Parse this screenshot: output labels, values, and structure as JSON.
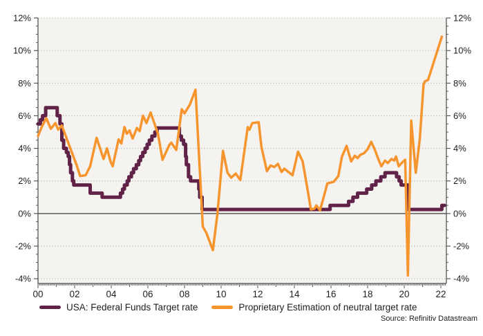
{
  "source": "Source: Refinitiv Datastream",
  "chart_data": {
    "type": "line",
    "title": "",
    "xlabel": "",
    "ylabel": "",
    "x_axis": {
      "min": 2000,
      "max": 2022.3,
      "tick_years": [
        2000,
        2002,
        2004,
        2006,
        2008,
        2010,
        2012,
        2014,
        2016,
        2018,
        2020,
        2022
      ],
      "tick_labels": [
        "00",
        "02",
        "04",
        "06",
        "08",
        "10",
        "12",
        "14",
        "16",
        "18",
        "20",
        "22"
      ],
      "minor_tick_years": 0.08333
    },
    "y_axis": {
      "min": -4.29,
      "max": 12,
      "ticks": [
        -4,
        -2,
        0,
        2,
        4,
        6,
        8,
        10,
        12
      ],
      "tick_labels": [
        "-4%",
        "-2%",
        "0%",
        "2%",
        "4%",
        "6%",
        "8%",
        "10%",
        "12%"
      ],
      "minor_step": 0.5,
      "unit": "%",
      "grid": "dotted",
      "labels_both_sides": true
    },
    "legend_position": "bottom",
    "series": [
      {
        "name": "USA: Federal Funds Target rate",
        "color": "#602347",
        "style": "step",
        "stroke_width": 5,
        "points": [
          [
            2000.0,
            5.5
          ],
          [
            2000.13,
            5.75
          ],
          [
            2000.25,
            6.0
          ],
          [
            2000.42,
            6.5
          ],
          [
            2001.05,
            6.0
          ],
          [
            2001.2,
            5.5
          ],
          [
            2001.3,
            4.5
          ],
          [
            2001.4,
            4.0
          ],
          [
            2001.55,
            3.75
          ],
          [
            2001.65,
            3.5
          ],
          [
            2001.72,
            3.0
          ],
          [
            2001.78,
            2.5
          ],
          [
            2001.88,
            2.0
          ],
          [
            2001.95,
            1.75
          ],
          [
            2002.85,
            1.25
          ],
          [
            2003.5,
            1.0
          ],
          [
            2004.5,
            1.25
          ],
          [
            2004.62,
            1.5
          ],
          [
            2004.72,
            1.75
          ],
          [
            2004.87,
            2.0
          ],
          [
            2004.96,
            2.25
          ],
          [
            2005.1,
            2.5
          ],
          [
            2005.22,
            2.75
          ],
          [
            2005.37,
            3.0
          ],
          [
            2005.5,
            3.25
          ],
          [
            2005.6,
            3.5
          ],
          [
            2005.72,
            3.75
          ],
          [
            2005.85,
            4.0
          ],
          [
            2005.96,
            4.25
          ],
          [
            2006.08,
            4.5
          ],
          [
            2006.22,
            4.75
          ],
          [
            2006.38,
            5.0
          ],
          [
            2006.5,
            5.25
          ],
          [
            2007.72,
            4.75
          ],
          [
            2007.83,
            4.5
          ],
          [
            2007.95,
            4.25
          ],
          [
            2008.06,
            3.5
          ],
          [
            2008.1,
            3.0
          ],
          [
            2008.22,
            2.25
          ],
          [
            2008.33,
            2.0
          ],
          [
            2008.78,
            1.5
          ],
          [
            2008.83,
            1.0
          ],
          [
            2008.96,
            0.25
          ],
          [
            2015.95,
            0.5
          ],
          [
            2016.96,
            0.75
          ],
          [
            2017.2,
            1.0
          ],
          [
            2017.45,
            1.25
          ],
          [
            2017.95,
            1.5
          ],
          [
            2018.22,
            1.75
          ],
          [
            2018.45,
            2.0
          ],
          [
            2018.72,
            2.25
          ],
          [
            2018.95,
            2.5
          ],
          [
            2019.58,
            2.25
          ],
          [
            2019.72,
            2.0
          ],
          [
            2019.83,
            1.75
          ],
          [
            2020.2,
            0.25
          ],
          [
            2022.05,
            0.5
          ],
          [
            2022.2,
            0.5
          ]
        ]
      },
      {
        "name": "Proprietary Estimation of neutral target rate",
        "color": "#f6952e",
        "style": "linear",
        "stroke_width": 3.5,
        "points": [
          [
            2000.0,
            4.75
          ],
          [
            2000.2,
            5.3
          ],
          [
            2000.45,
            5.85
          ],
          [
            2000.7,
            5.2
          ],
          [
            2000.95,
            5.55
          ],
          [
            2001.1,
            5.15
          ],
          [
            2001.3,
            5.4
          ],
          [
            2001.6,
            4.5
          ],
          [
            2001.85,
            3.75
          ],
          [
            2002.1,
            3.0
          ],
          [
            2002.3,
            2.3
          ],
          [
            2002.6,
            2.35
          ],
          [
            2002.85,
            2.9
          ],
          [
            2003.2,
            4.65
          ],
          [
            2003.58,
            3.35
          ],
          [
            2003.77,
            4.0
          ],
          [
            2003.96,
            3.2
          ],
          [
            2004.08,
            2.9
          ],
          [
            2004.4,
            4.55
          ],
          [
            2004.55,
            4.3
          ],
          [
            2004.72,
            5.3
          ],
          [
            2004.85,
            4.9
          ],
          [
            2005.0,
            5.1
          ],
          [
            2005.17,
            4.6
          ],
          [
            2005.4,
            5.25
          ],
          [
            2005.55,
            5.05
          ],
          [
            2005.73,
            6.0
          ],
          [
            2005.92,
            5.55
          ],
          [
            2006.15,
            6.2
          ],
          [
            2006.55,
            4.9
          ],
          [
            2006.8,
            3.3
          ],
          [
            2007.17,
            4.2
          ],
          [
            2007.28,
            4.35
          ],
          [
            2007.55,
            3.9
          ],
          [
            2007.85,
            6.4
          ],
          [
            2008.0,
            6.15
          ],
          [
            2008.3,
            6.7
          ],
          [
            2008.6,
            7.6
          ],
          [
            2009.0,
            -0.8
          ],
          [
            2009.2,
            -1.2
          ],
          [
            2009.55,
            -2.25
          ],
          [
            2009.8,
            0.0
          ],
          [
            2010.1,
            3.85
          ],
          [
            2010.35,
            2.5
          ],
          [
            2010.55,
            2.2
          ],
          [
            2010.8,
            2.45
          ],
          [
            2011.05,
            2.05
          ],
          [
            2011.45,
            5.3
          ],
          [
            2011.55,
            5.15
          ],
          [
            2011.7,
            5.55
          ],
          [
            2012.05,
            5.6
          ],
          [
            2012.2,
            4.1
          ],
          [
            2012.5,
            2.6
          ],
          [
            2012.7,
            2.95
          ],
          [
            2012.9,
            2.85
          ],
          [
            2013.1,
            3.05
          ],
          [
            2013.3,
            2.55
          ],
          [
            2013.45,
            2.75
          ],
          [
            2013.9,
            2.35
          ],
          [
            2014.2,
            3.8
          ],
          [
            2014.45,
            3.2
          ],
          [
            2014.7,
            1.6
          ],
          [
            2014.9,
            0.25
          ],
          [
            2015.1,
            0.3
          ],
          [
            2015.2,
            0.5
          ],
          [
            2015.4,
            0.2
          ],
          [
            2015.6,
            1.0
          ],
          [
            2015.8,
            1.85
          ],
          [
            2016.15,
            1.95
          ],
          [
            2016.4,
            2.3
          ],
          [
            2016.6,
            3.5
          ],
          [
            2016.85,
            4.15
          ],
          [
            2017.1,
            3.2
          ],
          [
            2017.3,
            3.55
          ],
          [
            2017.45,
            3.4
          ],
          [
            2017.6,
            3.6
          ],
          [
            2017.8,
            3.7
          ],
          [
            2018.0,
            3.95
          ],
          [
            2018.2,
            4.4
          ],
          [
            2018.4,
            3.9
          ],
          [
            2018.6,
            3.3
          ],
          [
            2018.75,
            2.9
          ],
          [
            2018.95,
            3.25
          ],
          [
            2019.1,
            3.1
          ],
          [
            2019.3,
            3.35
          ],
          [
            2019.45,
            3.25
          ],
          [
            2019.55,
            3.5
          ],
          [
            2019.7,
            2.9
          ],
          [
            2019.9,
            3.15
          ],
          [
            2020.05,
            3.3
          ],
          [
            2020.2,
            -3.8
          ],
          [
            2020.38,
            5.7
          ],
          [
            2020.63,
            2.5
          ],
          [
            2020.85,
            4.6
          ],
          [
            2021.05,
            7.9
          ],
          [
            2021.12,
            8.1
          ],
          [
            2021.3,
            8.2
          ],
          [
            2022.05,
            10.85
          ]
        ]
      }
    ],
    "layout": {
      "plot_bg": "#f4f3ef",
      "grid_color": "#b9b9b9",
      "zero_line_color": "#3c3c3c",
      "axis_color": "#555555",
      "text_color": "#1f1f1f"
    }
  }
}
